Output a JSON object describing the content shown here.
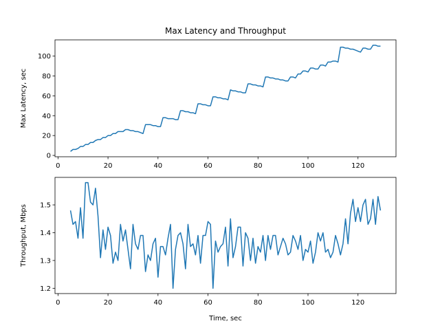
{
  "chart_data": [
    {
      "type": "line",
      "title": "Max Latency and Throughput",
      "ylabel": "Max Latency, sec",
      "color": "#1f77b4",
      "x": [
        5,
        6,
        7,
        8,
        9,
        10,
        11,
        12,
        13,
        14,
        15,
        16,
        17,
        18,
        19,
        20,
        21,
        22,
        23,
        24,
        25,
        26,
        27,
        28,
        29,
        30,
        31,
        32,
        33,
        34,
        35,
        36,
        37,
        38,
        39,
        40,
        41,
        42,
        43,
        44,
        45,
        46,
        47,
        48,
        49,
        50,
        51,
        52,
        53,
        54,
        55,
        56,
        57,
        58,
        59,
        60,
        61,
        62,
        63,
        64,
        65,
        66,
        67,
        68,
        69,
        70,
        71,
        72,
        73,
        74,
        75,
        76,
        77,
        78,
        79,
        80,
        81,
        82,
        83,
        84,
        85,
        86,
        87,
        88,
        89,
        90,
        91,
        92,
        93,
        94,
        95,
        96,
        97,
        98,
        99,
        100,
        101,
        102,
        103,
        104,
        105,
        106,
        107,
        108,
        109,
        110,
        111,
        112,
        113,
        114,
        115,
        116,
        117,
        118,
        119,
        120,
        121,
        122,
        123,
        124,
        125,
        126,
        127,
        128,
        129
      ],
      "values": [
        4,
        6,
        6,
        7,
        9,
        9,
        11,
        11,
        13,
        13,
        15,
        16,
        16,
        18,
        18,
        20,
        20,
        22,
        22,
        24,
        24,
        24,
        26,
        26,
        25,
        25,
        24,
        24,
        23,
        22,
        31,
        31,
        31,
        30,
        30,
        29,
        29,
        38,
        38,
        37,
        37,
        37,
        36,
        36,
        45,
        45,
        44,
        44,
        43,
        43,
        42,
        52,
        52,
        51,
        51,
        50,
        50,
        59,
        59,
        58,
        58,
        57,
        57,
        56,
        66,
        65,
        65,
        64,
        64,
        63,
        63,
        72,
        72,
        71,
        71,
        70,
        70,
        69,
        79,
        79,
        78,
        78,
        77,
        77,
        76,
        76,
        75,
        75,
        79,
        79,
        78,
        82,
        82,
        85,
        85,
        84,
        88,
        88,
        87,
        87,
        91,
        91,
        90,
        94,
        94,
        95,
        95,
        94,
        109,
        109,
        108,
        108,
        107,
        107,
        106,
        105,
        104,
        108,
        108,
        107,
        107,
        111,
        111,
        110,
        110
      ],
      "xlim": [
        -1.2,
        135.2
      ],
      "ylim": [
        -1.35,
        116.35
      ],
      "xticks": [
        0,
        20,
        40,
        60,
        80,
        100,
        120
      ],
      "yticks": [
        0,
        20,
        40,
        60,
        80,
        100
      ]
    },
    {
      "type": "line",
      "xlabel": "Time, sec",
      "ylabel": "Throughput, Mbps",
      "color": "#1f77b4",
      "x": [
        5,
        6,
        7,
        8,
        9,
        10,
        11,
        12,
        13,
        14,
        15,
        16,
        17,
        18,
        19,
        20,
        21,
        22,
        23,
        24,
        25,
        26,
        27,
        28,
        29,
        30,
        31,
        32,
        33,
        34,
        35,
        36,
        37,
        38,
        39,
        40,
        41,
        42,
        43,
        44,
        45,
        46,
        47,
        48,
        49,
        50,
        51,
        52,
        53,
        54,
        55,
        56,
        57,
        58,
        59,
        60,
        61,
        62,
        63,
        64,
        65,
        66,
        67,
        68,
        69,
        70,
        71,
        72,
        73,
        74,
        75,
        76,
        77,
        78,
        79,
        80,
        81,
        82,
        83,
        84,
        85,
        86,
        87,
        88,
        89,
        90,
        91,
        92,
        93,
        94,
        95,
        96,
        97,
        98,
        99,
        100,
        101,
        102,
        103,
        104,
        105,
        106,
        107,
        108,
        109,
        110,
        111,
        112,
        113,
        114,
        115,
        116,
        117,
        118,
        119,
        120,
        121,
        122,
        123,
        124,
        125,
        126,
        127,
        128,
        129
      ],
      "values": [
        1.48,
        1.43,
        1.44,
        1.38,
        1.49,
        1.38,
        1.58,
        1.58,
        1.51,
        1.5,
        1.56,
        1.46,
        1.31,
        1.41,
        1.34,
        1.42,
        1.39,
        1.29,
        1.33,
        1.3,
        1.43,
        1.37,
        1.41,
        1.34,
        1.27,
        1.43,
        1.36,
        1.34,
        1.39,
        1.39,
        1.26,
        1.32,
        1.3,
        1.36,
        1.38,
        1.24,
        1.35,
        1.35,
        1.32,
        1.38,
        1.43,
        1.2,
        1.34,
        1.39,
        1.4,
        1.36,
        1.27,
        1.43,
        1.35,
        1.36,
        1.32,
        1.39,
        1.29,
        1.39,
        1.39,
        1.44,
        1.43,
        1.2,
        1.37,
        1.33,
        1.35,
        1.36,
        1.42,
        1.28,
        1.45,
        1.31,
        1.35,
        1.42,
        1.42,
        1.28,
        1.4,
        1.38,
        1.3,
        1.38,
        1.29,
        1.35,
        1.33,
        1.39,
        1.3,
        1.39,
        1.34,
        1.39,
        1.39,
        1.32,
        1.35,
        1.38,
        1.36,
        1.32,
        1.33,
        1.39,
        1.37,
        1.34,
        1.39,
        1.3,
        1.34,
        1.33,
        1.37,
        1.29,
        1.33,
        1.4,
        1.37,
        1.4,
        1.33,
        1.34,
        1.31,
        1.33,
        1.39,
        1.36,
        1.32,
        1.36,
        1.45,
        1.36,
        1.47,
        1.52,
        1.44,
        1.49,
        1.44,
        1.5,
        1.52,
        1.43,
        1.45,
        1.52,
        1.43,
        1.53,
        1.48
      ],
      "xlim": [
        -1.2,
        135.2
      ],
      "ylim": [
        1.181,
        1.599
      ],
      "xticks": [
        0,
        20,
        40,
        60,
        80,
        100,
        120
      ],
      "yticks": [
        1.2,
        1.3,
        1.4,
        1.5
      ]
    }
  ]
}
